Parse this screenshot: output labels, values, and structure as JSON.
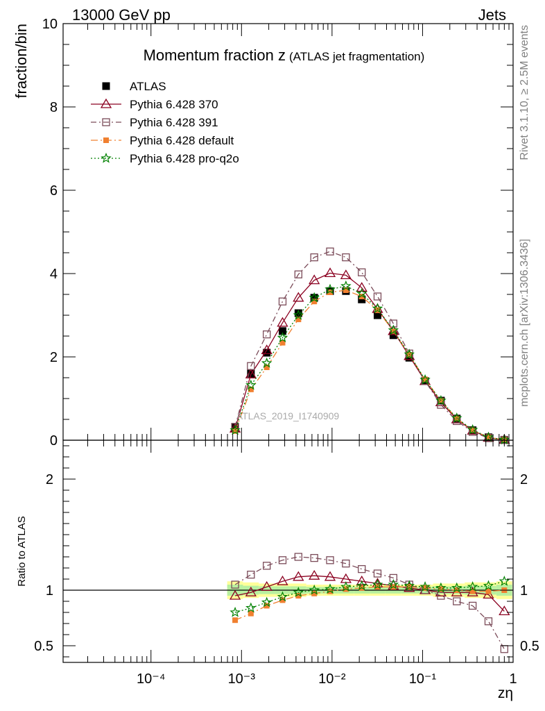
{
  "header": {
    "left": "13000 GeV pp",
    "right": "Jets"
  },
  "side": {
    "rivet": "Rivet 3.1.10, ≥ 2.5M events",
    "mcplots": "mcplots.cern.ch [arXiv:1306.3436]"
  },
  "watermark": "ATLAS_2019_I1740909",
  "chart_data": [
    {
      "panel": "main",
      "type": "line",
      "title": "Momentum fraction z",
      "title_small": "(ATLAS jet fragmentation)",
      "ylabel": "fraction/bin",
      "xscale": "log",
      "xlim": [
        1.07e-05,
        1.0
      ],
      "ylim": [
        0,
        10
      ],
      "yticks": [
        "0",
        "2",
        "4",
        "6",
        "8",
        "10"
      ],
      "legend_position": "top-left",
      "x": [
        0.00085,
        0.00127,
        0.0019,
        0.00284,
        0.00425,
        0.00636,
        0.00951,
        0.01423,
        0.0213,
        0.0318,
        0.0476,
        0.0713,
        0.1066,
        0.1595,
        0.2387,
        0.3572,
        0.5344,
        0.7996
      ],
      "series": [
        {
          "name": "ATLAS",
          "color": "#000000",
          "marker": "square-filled",
          "values": [
            0.3,
            1.6,
            2.1,
            2.62,
            3.05,
            3.42,
            3.58,
            3.58,
            3.38,
            3.0,
            2.52,
            1.98,
            1.42,
            0.95,
            0.52,
            0.24,
            0.07,
            0.01
          ]
        },
        {
          "name": "Pythia 6.428 370",
          "color": "#8b0020",
          "marker": "triangle-open",
          "dash": "solid",
          "values": [
            0.28,
            1.58,
            2.16,
            2.82,
            3.42,
            3.84,
            4.01,
            3.96,
            3.66,
            3.15,
            2.62,
            2.02,
            1.42,
            0.91,
            0.5,
            0.23,
            0.06,
            0.01
          ]
        },
        {
          "name": "Pythia 6.428 391",
          "color": "#7a4a58",
          "marker": "square-open",
          "dash": "dashdot",
          "values": [
            0.32,
            1.78,
            2.54,
            3.33,
            3.98,
            4.39,
            4.53,
            4.39,
            4.03,
            3.45,
            2.8,
            2.08,
            1.42,
            0.85,
            0.46,
            0.2,
            0.05,
            0.005
          ]
        },
        {
          "name": "Pythia 6.428 default",
          "color": "#f08030",
          "marker": "square-small-filled",
          "dash": "dashdot-long",
          "values": [
            0.22,
            1.22,
            1.75,
            2.34,
            2.9,
            3.33,
            3.55,
            3.6,
            3.45,
            3.12,
            2.62,
            2.05,
            1.46,
            0.95,
            0.52,
            0.24,
            0.07,
            0.01
          ]
        },
        {
          "name": "Pythia 6.428 pro-q2o",
          "color": "#008000",
          "marker": "star",
          "dash": "dotted",
          "values": [
            0.24,
            1.32,
            1.85,
            2.46,
            3.0,
            3.42,
            3.62,
            3.7,
            3.52,
            3.16,
            2.64,
            2.06,
            1.45,
            0.95,
            0.53,
            0.25,
            0.07,
            0.01
          ]
        }
      ]
    },
    {
      "panel": "ratio",
      "type": "line",
      "xlabel": "zη",
      "ylabel": "Ratio to ATLAS",
      "xscale": "log",
      "xlim": [
        1.07e-05,
        1.0
      ],
      "ylim": [
        0.35,
        2.35
      ],
      "yticks": [
        "0.5",
        "1",
        "2"
      ],
      "xticks": [
        "10⁻⁴",
        "10⁻³",
        "10⁻²",
        "10⁻¹",
        "1"
      ],
      "band_outer": [
        0.08,
        0.07,
        0.06,
        0.06,
        0.06,
        0.05,
        0.05,
        0.05,
        0.05,
        0.05,
        0.05,
        0.05,
        0.05,
        0.06,
        0.06,
        0.07,
        0.07,
        0.08
      ],
      "band_inner": [
        0.05,
        0.04,
        0.035,
        0.035,
        0.035,
        0.03,
        0.03,
        0.03,
        0.03,
        0.03,
        0.03,
        0.03,
        0.03,
        0.035,
        0.035,
        0.04,
        0.04,
        0.05
      ],
      "series": [
        {
          "name": "Pythia 6.428 370",
          "values": [
            0.95,
            0.98,
            1.03,
            1.08,
            1.12,
            1.13,
            1.12,
            1.1,
            1.08,
            1.06,
            1.04,
            1.02,
            1.0,
            0.98,
            0.98,
            0.98,
            0.96,
            0.81
          ]
        },
        {
          "name": "Pythia 6.428 391",
          "values": [
            1.05,
            1.14,
            1.22,
            1.27,
            1.3,
            1.29,
            1.27,
            1.24,
            1.19,
            1.15,
            1.11,
            1.05,
            1.0,
            0.95,
            0.9,
            0.86,
            0.72,
            0.47
          ]
        },
        {
          "name": "Pythia 6.428 default",
          "values": [
            0.73,
            0.79,
            0.86,
            0.91,
            0.95,
            0.97,
            0.99,
            1.01,
            1.02,
            1.03,
            1.03,
            1.03,
            1.02,
            1.01,
            1.0,
            0.99,
            0.99,
            1.0
          ]
        },
        {
          "name": "Pythia 6.428 pro-q2o",
          "values": [
            0.8,
            0.84,
            0.89,
            0.94,
            0.98,
            1.0,
            1.01,
            1.03,
            1.04,
            1.05,
            1.05,
            1.04,
            1.03,
            1.02,
            1.02,
            1.03,
            1.04,
            1.08
          ]
        }
      ]
    }
  ]
}
